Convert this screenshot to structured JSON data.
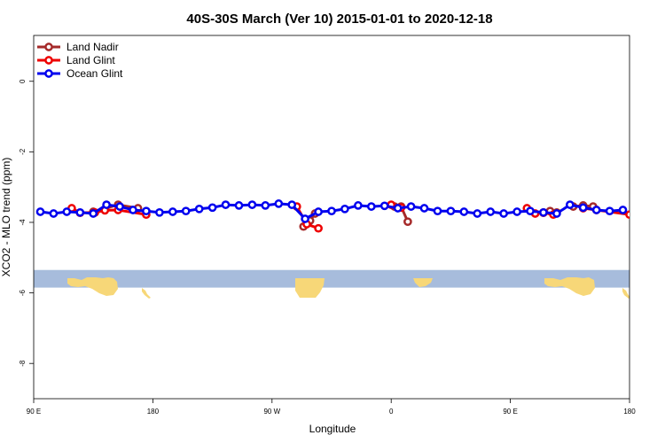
{
  "chart_data": {
    "type": "line",
    "title": "40S-30S March (Ver 10)   2015-01-01 to 2020-12-18",
    "xlabel": "Longitude",
    "ylabel": "XCO2 - MLO trend (ppm)",
    "xlim": [
      90,
      450
    ],
    "ylim": [
      -9.0,
      1.3
    ],
    "x_ticks": [
      {
        "value": 90,
        "label": "90 E"
      },
      {
        "value": 162,
        "label": "180"
      },
      {
        "value": 234,
        "label": "90 W"
      },
      {
        "value": 306,
        "label": "0"
      },
      {
        "value": 378,
        "label": "90 E"
      },
      {
        "value": 450,
        "label": "180"
      }
    ],
    "y_ticks": [
      {
        "value": 0,
        "label": "0"
      },
      {
        "value": -2,
        "label": "-2"
      },
      {
        "value": -4,
        "label": "-4"
      },
      {
        "value": -6,
        "label": "-6"
      },
      {
        "value": -8,
        "label": "-8"
      }
    ],
    "legend": {
      "position": "top-left",
      "entries": [
        {
          "name": "Land Nadir",
          "color": "#a52a2a"
        },
        {
          "name": "Land Glint",
          "color": "#ee0000"
        },
        {
          "name": "Ocean Glint",
          "color": "#0000ee"
        }
      ]
    },
    "map_band": {
      "y_range": [
        -5.35,
        -5.85
      ],
      "ocean_color": "#a7bcdc",
      "land_color": "#f7d778"
    },
    "series": [
      {
        "name": "Land Nadir",
        "color": "#a52a2a",
        "segments": [
          {
            "x": [
              126,
              141,
              153
            ],
            "y": [
              -3.7,
              -3.5,
              -3.6
            ]
          },
          {
            "x": [
              253,
              257,
              260
            ],
            "y": [
              -4.12,
              -3.95,
              -3.75
            ]
          },
          {
            "x": [
              308,
              312,
              316
            ],
            "y": [
              -3.55,
              -3.55,
              -3.98
            ]
          },
          {
            "x": [
              398,
              402,
              406
            ],
            "y": [
              -3.72,
              -3.68,
              -3.72
            ]
          },
          {
            "x": [
              416,
              422,
              428
            ],
            "y": [
              -3.55,
              -3.52,
              -3.55
            ]
          }
        ]
      },
      {
        "name": "Land Glint",
        "color": "#ee0000",
        "segments": [
          {
            "x": [
              113,
              118,
              127,
              133,
              141,
              158
            ],
            "y": [
              -3.6,
              -3.73,
              -3.72,
              -3.66,
              -3.65,
              -3.78
            ]
          },
          {
            "x": [
              249,
              255,
              262
            ],
            "y": [
              -3.55,
              -4.05,
              -4.17
            ]
          },
          {
            "x": [
              306,
              312
            ],
            "y": [
              -3.5,
              -3.58
            ]
          },
          {
            "x": [
              388,
              393,
              398,
              404
            ],
            "y": [
              -3.6,
              -3.75,
              -3.73,
              -3.78
            ]
          },
          {
            "x": [
              422,
              430,
              450
            ],
            "y": [
              -3.6,
              -3.65,
              -3.78
            ]
          }
        ]
      },
      {
        "name": "Ocean Glint",
        "color": "#0000ee",
        "segments": [
          {
            "x": [
              94,
              102,
              110,
              118,
              126,
              134,
              142,
              150,
              158,
              166,
              174,
              182,
              190,
              198,
              206,
              214,
              222,
              230,
              238,
              246,
              254,
              262,
              270,
              278,
              286,
              294,
              302,
              310,
              318,
              326,
              334,
              342,
              350,
              358,
              366,
              374,
              382,
              390,
              398,
              406,
              414,
              422,
              430,
              438,
              446
            ],
            "y": [
              -3.7,
              -3.75,
              -3.7,
              -3.72,
              -3.75,
              -3.5,
              -3.55,
              -3.65,
              -3.68,
              -3.72,
              -3.7,
              -3.68,
              -3.62,
              -3.58,
              -3.5,
              -3.52,
              -3.5,
              -3.52,
              -3.47,
              -3.5,
              -3.9,
              -3.7,
              -3.68,
              -3.62,
              -3.52,
              -3.55,
              -3.53,
              -3.6,
              -3.55,
              -3.6,
              -3.68,
              -3.68,
              -3.7,
              -3.75,
              -3.7,
              -3.75,
              -3.7,
              -3.68,
              -3.72,
              -3.75,
              -3.5,
              -3.58,
              -3.65,
              -3.68,
              -3.65
            ]
          }
        ]
      }
    ]
  }
}
